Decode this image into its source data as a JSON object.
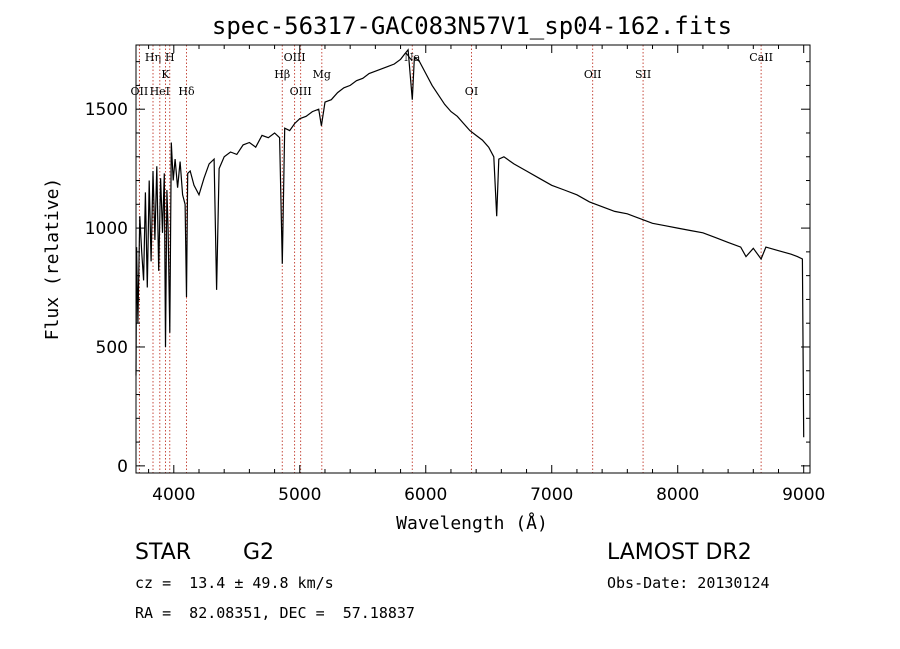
{
  "chart_data": {
    "type": "line",
    "title": "spec-56317-GAC083N57V1_sp04-162.fits",
    "xlabel": "Wavelength (Å)",
    "ylabel": "Flux (relative)",
    "xlim": [
      3700,
      9050
    ],
    "ylim": [
      -30,
      1770
    ],
    "xticks": [
      4000,
      5000,
      6000,
      7000,
      8000,
      9000
    ],
    "yticks": [
      0,
      500,
      1000,
      1500
    ],
    "grid": false,
    "series": [
      {
        "x": [
          3700,
          3705,
          3715,
          3730,
          3745,
          3760,
          3775,
          3790,
          3805,
          3820,
          3835,
          3850,
          3865,
          3880,
          3895,
          3910,
          3925,
          3934,
          3945,
          3955,
          3968,
          3980,
          3995,
          4010,
          4030,
          4050,
          4070,
          4090,
          4101,
          4110,
          4130,
          4160,
          4200,
          4240,
          4280,
          4320,
          4340,
          4360,
          4400,
          4450,
          4500,
          4550,
          4600,
          4650,
          4700,
          4750,
          4800,
          4840,
          4861,
          4880,
          4920,
          4960,
          5000,
          5050,
          5100,
          5150,
          5172,
          5200,
          5250,
          5300,
          5350,
          5400,
          5450,
          5500,
          5550,
          5600,
          5650,
          5700,
          5750,
          5800,
          5830,
          5860,
          5893,
          5910,
          5950,
          6000,
          6050,
          6100,
          6150,
          6200,
          6250,
          6300,
          6350,
          6400,
          6450,
          6500,
          6540,
          6563,
          6580,
          6620,
          6700,
          6800,
          6900,
          7000,
          7100,
          7200,
          7300,
          7400,
          7500,
          7600,
          7700,
          7800,
          7900,
          8000,
          8100,
          8200,
          8300,
          8400,
          8500,
          8542,
          8600,
          8662,
          8700,
          8800,
          8900,
          8950,
          8990,
          9000
        ],
        "y": [
          380,
          920,
          600,
          1050,
          900,
          780,
          1150,
          750,
          1200,
          860,
          1240,
          950,
          1260,
          820,
          1210,
          980,
          1230,
          500,
          1160,
          1000,
          560,
          1360,
          1200,
          1290,
          1170,
          1280,
          1140,
          1100,
          710,
          1230,
          1240,
          1180,
          1140,
          1210,
          1270,
          1290,
          740,
          1250,
          1300,
          1320,
          1310,
          1350,
          1360,
          1340,
          1390,
          1380,
          1400,
          1380,
          850,
          1420,
          1410,
          1440,
          1460,
          1470,
          1490,
          1500,
          1430,
          1530,
          1540,
          1570,
          1590,
          1600,
          1620,
          1630,
          1650,
          1660,
          1670,
          1680,
          1690,
          1710,
          1730,
          1750,
          1540,
          1720,
          1700,
          1650,
          1600,
          1560,
          1520,
          1490,
          1470,
          1440,
          1410,
          1390,
          1370,
          1340,
          1300,
          1050,
          1290,
          1300,
          1270,
          1240,
          1210,
          1180,
          1160,
          1140,
          1110,
          1090,
          1070,
          1060,
          1040,
          1020,
          1010,
          1000,
          990,
          980,
          960,
          940,
          920,
          880,
          915,
          870,
          920,
          905,
          890,
          880,
          870,
          120
        ]
      }
    ],
    "line_markers": [
      {
        "label": "OII",
        "x": 3727,
        "row": 2
      },
      {
        "label": "Hη",
        "x": 3835,
        "row": 0
      },
      {
        "label": "HeI",
        "x": 3889,
        "row": 2
      },
      {
        "label": "K",
        "x": 3934,
        "row": 1
      },
      {
        "label": "H",
        "x": 3968,
        "row": 0
      },
      {
        "label": "Hδ",
        "x": 4101,
        "row": 2
      },
      {
        "label": "Hβ",
        "x": 4861,
        "row": 1
      },
      {
        "label": "OIII",
        "x": 4959,
        "row": 0
      },
      {
        "label": "OIII",
        "x": 5007,
        "row": 2
      },
      {
        "label": "Mg",
        "x": 5175,
        "row": 1
      },
      {
        "label": "Na",
        "x": 5893,
        "row": 0
      },
      {
        "label": "OI",
        "x": 6363,
        "row": 2
      },
      {
        "label": "OII",
        "x": 7325,
        "row": 1
      },
      {
        "label": "SII",
        "x": 7725,
        "row": 1
      },
      {
        "label": "CaII",
        "x": 8662,
        "row": 0
      }
    ]
  },
  "info": {
    "object_class": "STAR",
    "subclass": "G2",
    "redshift": "cz =  13.4 ± 49.8 km/s",
    "coords": "RA =  82.08351, DEC =  57.18837",
    "survey": "LAMOST DR2",
    "obs_date": "Obs-Date: 20130124"
  }
}
